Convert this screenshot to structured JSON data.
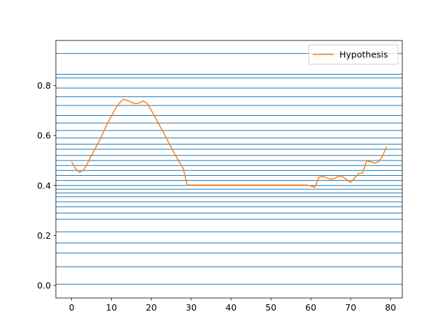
{
  "chart_data": {
    "type": "line",
    "title": "",
    "xlabel": "",
    "ylabel": "",
    "xlim": [
      -3.95,
      82.95
    ],
    "ylim": [
      -0.05,
      0.98
    ],
    "xticks": [
      0,
      10,
      20,
      30,
      40,
      50,
      60,
      70,
      80
    ],
    "xtick_labels": [
      "0",
      "10",
      "20",
      "30",
      "40",
      "50",
      "60",
      "70",
      "80"
    ],
    "yticks": [
      0.0,
      0.2,
      0.4,
      0.6,
      0.8
    ],
    "ytick_labels": [
      "0.0",
      "0.2",
      "0.4",
      "0.6",
      "0.8"
    ],
    "grid": false,
    "legend": {
      "placement": "top-right"
    },
    "hlines": {
      "color": "#1f77b4",
      "values": [
        0.005,
        0.075,
        0.13,
        0.17,
        0.215,
        0.265,
        0.29,
        0.315,
        0.335,
        0.355,
        0.37,
        0.385,
        0.4,
        0.42,
        0.44,
        0.46,
        0.48,
        0.5,
        0.52,
        0.545,
        0.565,
        0.59,
        0.62,
        0.65,
        0.68,
        0.72,
        0.755,
        0.79,
        0.83,
        0.845,
        0.928
      ]
    },
    "series": [
      {
        "name": "Hypothesis",
        "color": "#ff7f0e",
        "x": [
          0,
          1,
          2,
          3,
          4,
          5,
          6,
          7,
          8,
          9,
          10,
          11,
          12,
          13,
          14,
          15,
          16,
          17,
          18,
          19,
          20,
          21,
          22,
          23,
          24,
          25,
          26,
          27,
          28,
          29,
          30,
          31,
          32,
          33,
          34,
          35,
          36,
          37,
          38,
          39,
          40,
          41,
          42,
          43,
          44,
          45,
          46,
          47,
          48,
          49,
          50,
          51,
          52,
          53,
          54,
          55,
          56,
          57,
          58,
          59,
          60,
          61,
          62,
          63,
          64,
          65,
          66,
          67,
          68,
          69,
          70,
          71,
          72,
          73,
          74,
          75,
          76,
          77,
          78,
          79
        ],
        "y": [
          0.495,
          0.468,
          0.452,
          0.462,
          0.49,
          0.52,
          0.55,
          0.58,
          0.615,
          0.648,
          0.678,
          0.708,
          0.73,
          0.745,
          0.74,
          0.733,
          0.727,
          0.73,
          0.738,
          0.727,
          0.7,
          0.672,
          0.642,
          0.613,
          0.582,
          0.552,
          0.522,
          0.495,
          0.468,
          0.402,
          0.402,
          0.402,
          0.402,
          0.402,
          0.402,
          0.402,
          0.402,
          0.402,
          0.402,
          0.402,
          0.402,
          0.402,
          0.402,
          0.402,
          0.402,
          0.402,
          0.402,
          0.402,
          0.402,
          0.402,
          0.402,
          0.402,
          0.402,
          0.402,
          0.402,
          0.402,
          0.402,
          0.402,
          0.402,
          0.402,
          0.398,
          0.393,
          0.432,
          0.437,
          0.43,
          0.425,
          0.428,
          0.438,
          0.435,
          0.423,
          0.412,
          0.43,
          0.448,
          0.45,
          0.498,
          0.495,
          0.49,
          0.495,
          0.518,
          0.555
        ]
      }
    ]
  }
}
